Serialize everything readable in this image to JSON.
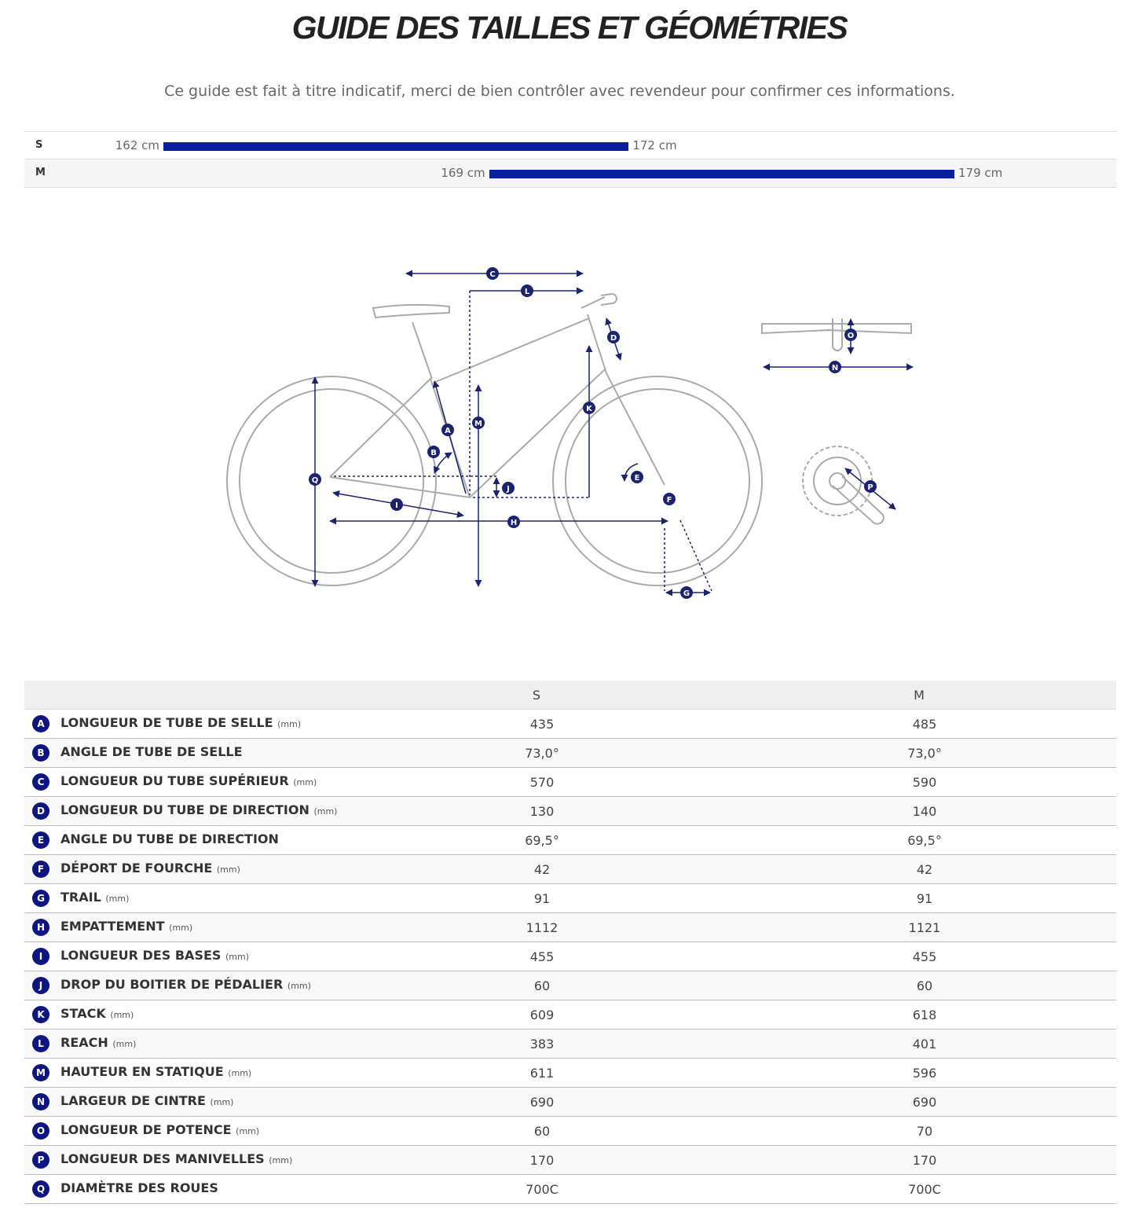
{
  "header": {
    "title": "GUIDE DES TAILLES ET GÉOMÉTRIES",
    "subtitle": "Ce guide est fait à titre indicatif, merci de bien contrôler avec revendeur pour confirmer ces informations."
  },
  "sizes": [
    {
      "name": "S",
      "from": {
        "value": 162,
        "label": "162 cm"
      },
      "to": {
        "value": 172,
        "label": "172 cm"
      }
    },
    {
      "name": "M",
      "from": {
        "value": 169,
        "label": "169 cm"
      },
      "to": {
        "value": 179,
        "label": "179 cm"
      }
    }
  ],
  "table": {
    "columns": [
      "S",
      "M"
    ],
    "rows": [
      {
        "letter": "A",
        "label": "LONGUEUR DE TUBE DE SELLE",
        "unit": "(mm)",
        "values": [
          435,
          485
        ]
      },
      {
        "letter": "B",
        "label": "ANGLE DE TUBE DE SELLE",
        "values": [
          "73,0°",
          "73,0°"
        ]
      },
      {
        "letter": "C",
        "label": "LONGUEUR DU TUBE SUPÉRIEUR",
        "unit": "(mm)",
        "values": [
          570,
          590
        ]
      },
      {
        "letter": "D",
        "label": "LONGUEUR DU TUBE DE DIRECTION",
        "unit": "(mm)",
        "values": [
          130,
          140
        ]
      },
      {
        "letter": "E",
        "label": "ANGLE DU TUBE DE DIRECTION",
        "values": [
          "69,5°",
          "69,5°"
        ]
      },
      {
        "letter": "F",
        "label": "DÉPORT DE FOURCHE",
        "unit": "(mm)",
        "values": [
          42,
          42
        ]
      },
      {
        "letter": "G",
        "label": "TRAIL",
        "unit": "(mm)",
        "values": [
          91,
          91
        ]
      },
      {
        "letter": "H",
        "label": "EMPATTEMENT",
        "unit": "(mm)",
        "values": [
          1112,
          1121
        ]
      },
      {
        "letter": "I",
        "label": "LONGUEUR DES BASES",
        "unit": "(mm)",
        "values": [
          455,
          455
        ]
      },
      {
        "letter": "J",
        "label": "DROP DU BOITIER DE PÉDALIER",
        "unit": "(mm)",
        "values": [
          60,
          60
        ]
      },
      {
        "letter": "K",
        "label": "STACK",
        "unit": "(mm)",
        "values": [
          609,
          618
        ]
      },
      {
        "letter": "L",
        "label": "REACH",
        "unit": "(mm)",
        "values": [
          383,
          401
        ]
      },
      {
        "letter": "M",
        "label": "HAUTEUR EN STATIQUE",
        "unit": "(mm)",
        "values": [
          611,
          596
        ]
      },
      {
        "letter": "N",
        "label": "LARGEUR DE CINTRE",
        "unit": "(mm)",
        "values": [
          690,
          690
        ]
      },
      {
        "letter": "O",
        "label": "LONGUEUR DE POTENCE",
        "unit": "(mm)",
        "values": [
          60,
          70
        ]
      },
      {
        "letter": "P",
        "label": "LONGUEUR DES MANIVELLES",
        "unit": "(mm)",
        "values": [
          170,
          170
        ]
      },
      {
        "letter": "Q",
        "label": "DIAMÈTRE DES ROUES",
        "values": [
          "700C",
          "700C"
        ]
      }
    ]
  }
}
